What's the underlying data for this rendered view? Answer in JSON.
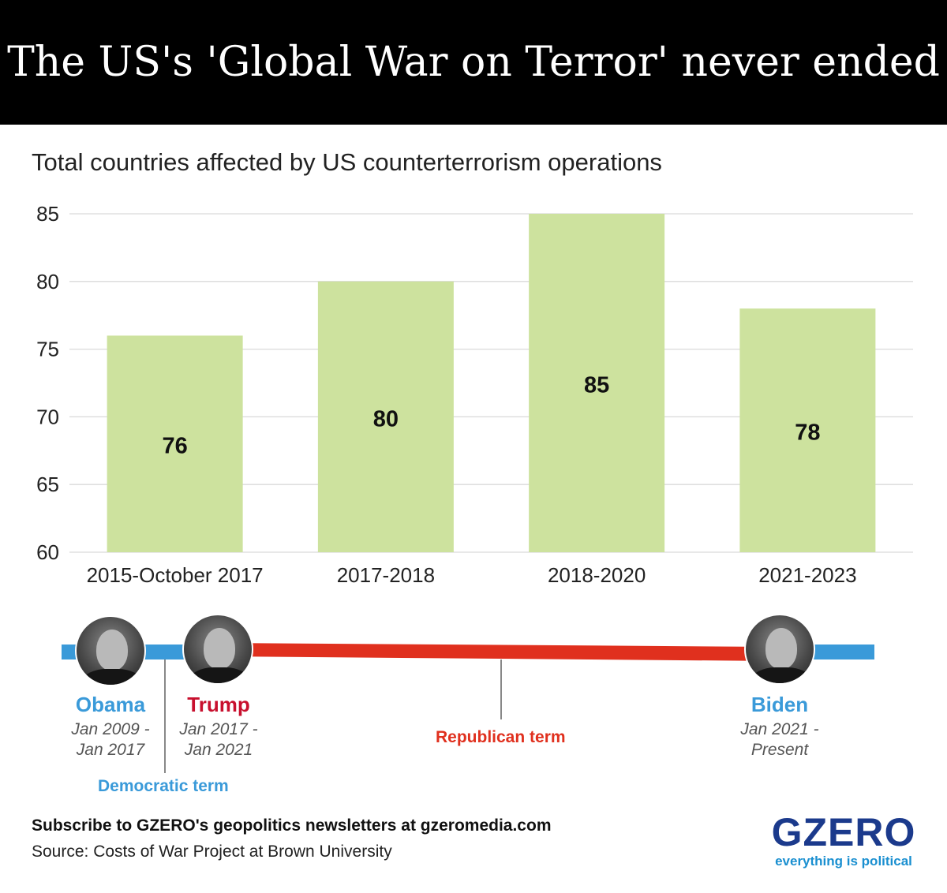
{
  "header": {
    "title": "The US's 'Global War on Terror' never ended"
  },
  "subtitle": "Total countries affected by US counterterrorism operations",
  "chart_data": {
    "type": "bar",
    "title": "Total countries affected by US counterterrorism operations",
    "categories": [
      "2015-October 2017",
      "2017-2018",
      "2018-2020",
      "2021-2023"
    ],
    "values": [
      76,
      80,
      85,
      78
    ],
    "data_labels": [
      "76",
      "80",
      "85",
      "78"
    ],
    "ylim": [
      60,
      85
    ],
    "yticks": [
      "60",
      "65",
      "70",
      "75",
      "80",
      "85"
    ],
    "grid": true,
    "bar_color": "#cde29e",
    "grid_color": "#d9d9d9"
  },
  "timeline": {
    "presidents": [
      {
        "name": "Obama",
        "dates_line1": "Jan 2009 -",
        "dates_line2": "Jan 2017",
        "party_color": "#3a9ad9"
      },
      {
        "name": "Trump",
        "dates_line1": "Jan 2017 -",
        "dates_line2": "Jan 2021",
        "party_color": "#c8102e"
      },
      {
        "name": "Biden",
        "dates_line1": "Jan 2021 -",
        "dates_line2": "Present",
        "party_color": "#3a9ad9"
      }
    ],
    "republican_label": "Republican term",
    "democratic_label": "Democratic term",
    "democratic_color": "#3a9ad9",
    "republican_color": "#e0301e"
  },
  "footer": {
    "subscribe": "Subscribe to GZERO's geopolitics newsletters at gzeromedia.com",
    "source": "Source: Costs of War Project at Brown University"
  },
  "logo": {
    "name": "GZERO",
    "tagline": "everything is political"
  }
}
